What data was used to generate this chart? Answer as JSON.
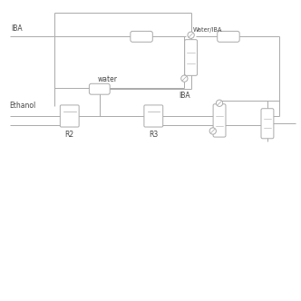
{
  "bg_color": "#ffffff",
  "line_color": "#aaaaaa",
  "text_color": "#444444",
  "fig_width": 3.32,
  "fig_height": 3.32,
  "dpi": 100,
  "xlim": [
    0,
    10
  ],
  "ylim": [
    0,
    10
  ]
}
